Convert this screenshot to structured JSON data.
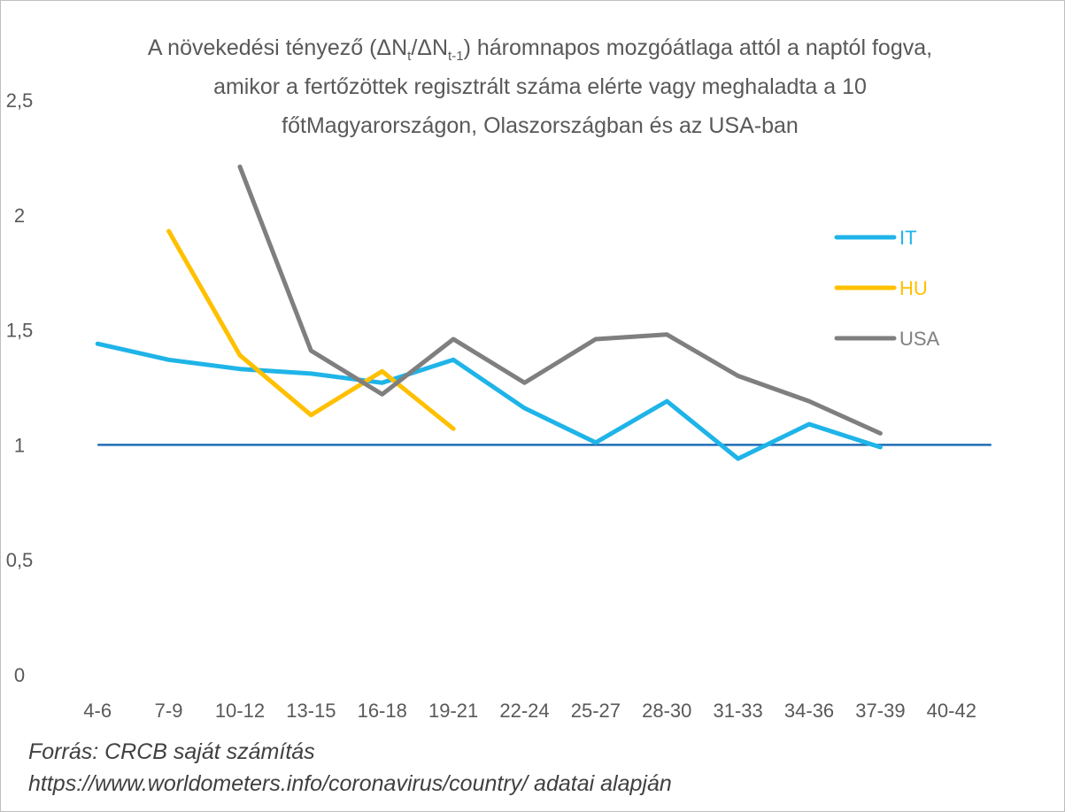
{
  "title": {
    "part1": "A növekedési tényező (ΔN",
    "sub1": "t",
    "part2": "/ΔN",
    "sub2": "t-1",
    "part3": ") háromnapos mozgóátlaga attól a naptól fogva, amikor a fertőzöttek regisztrált száma elérte vagy meghaladta a 10 főtMagyarországon, Olaszországban és az USA-ban"
  },
  "source": {
    "line1": "Forrás: CRCB saját számítás",
    "line2": "https://www.worldometers.info/coronavirus/country/ adatai alapján"
  },
  "chart_data": {
    "type": "line",
    "categories": [
      "4-6",
      "7-9",
      "10-12",
      "13-15",
      "16-18",
      "19-21",
      "22-24",
      "25-27",
      "28-30",
      "31-33",
      "34-36",
      "37-39",
      "40-42"
    ],
    "y_ticks": [
      "0",
      "0,5",
      "1",
      "1,5",
      "2",
      "2,5"
    ],
    "ylim": [
      0,
      2.5
    ],
    "reference_line": 1,
    "legend_position": "right",
    "grid": false,
    "series": [
      {
        "name": "IT",
        "color": "#1fb4e8",
        "values": [
          1.44,
          1.37,
          1.33,
          1.31,
          1.27,
          1.37,
          1.16,
          1.01,
          1.19,
          0.94,
          1.09,
          0.99,
          null
        ]
      },
      {
        "name": "HU",
        "color": "#ffc000",
        "values": [
          null,
          1.93,
          1.39,
          1.13,
          1.32,
          1.07,
          null,
          null,
          null,
          null,
          null,
          null,
          null
        ]
      },
      {
        "name": "USA",
        "color": "#7f7f7f",
        "values": [
          null,
          null,
          2.21,
          1.41,
          1.22,
          1.46,
          1.27,
          1.46,
          1.48,
          1.3,
          1.19,
          1.05,
          null
        ]
      }
    ],
    "reference_color": "#1f6eb5"
  }
}
